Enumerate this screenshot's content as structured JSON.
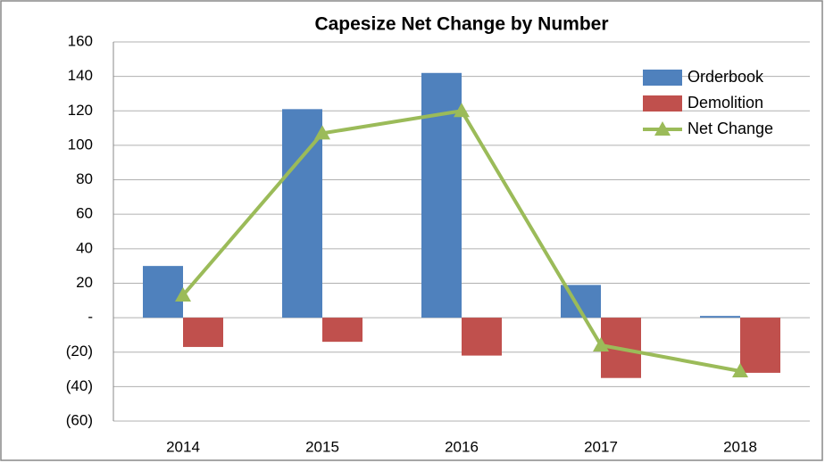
{
  "chart_data": {
    "type": "combo",
    "title": "Capesize Net Change by Number",
    "categories": [
      "2014",
      "2015",
      "2016",
      "2017",
      "2018"
    ],
    "series": [
      {
        "name": "Orderbook",
        "type": "bar",
        "color": "#4f81bd",
        "values": [
          30,
          121,
          142,
          19,
          1
        ]
      },
      {
        "name": "Demolition",
        "type": "bar",
        "color": "#c0504d",
        "values": [
          -17,
          -14,
          -22,
          -35,
          -32
        ]
      },
      {
        "name": "Net Change",
        "type": "line",
        "color": "#9bbb59",
        "values": [
          13,
          107,
          120,
          -16,
          -31
        ]
      }
    ],
    "ylim": [
      -60,
      160
    ],
    "yticks": [
      {
        "value": -60,
        "label": "(60)"
      },
      {
        "value": -40,
        "label": "(40)"
      },
      {
        "value": -20,
        "label": "(20)"
      },
      {
        "value": 0,
        "label": "-"
      },
      20,
      40,
      60,
      80,
      100,
      120,
      140,
      160
    ],
    "grid": true,
    "legend": "upper right"
  }
}
